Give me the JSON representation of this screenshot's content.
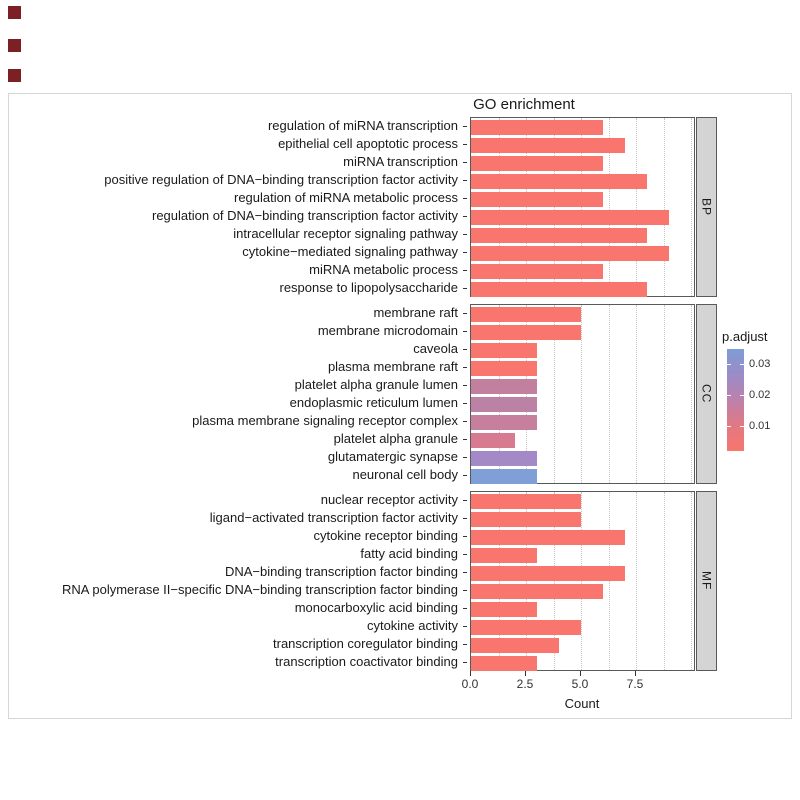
{
  "decorations": {
    "square_color": "#7b2025",
    "square_count": 3
  },
  "chart_data": {
    "type": "bar",
    "orientation": "horizontal",
    "title": "GO enrichment",
    "xlabel": "Count",
    "x_ticks": [
      0.0,
      2.5,
      5.0,
      7.5
    ],
    "x_tick_labels": [
      "0.0",
      "2.5",
      "5.0",
      "7.5"
    ],
    "xlim": [
      0,
      10.2
    ],
    "grid": "dotted-vertical",
    "bar_color_default": "#f8766d",
    "legend": {
      "title": "p.adjust",
      "position": "right",
      "tick_labels": [
        "0.03",
        "0.02",
        "0.01"
      ],
      "gradient": [
        "#7e9cd4",
        "#9a8cc8",
        "#bc81ab",
        "#e1798383",
        "#f8766d"
      ],
      "gradient_css": [
        "#7e9cd4",
        "#9a8cc8",
        "#bc81ab",
        "#e17983",
        "#f8766d"
      ]
    },
    "facets": [
      {
        "label": "BP",
        "items": [
          {
            "name": "regulation of miRNA transcription",
            "count": 6,
            "color": "#f8766d"
          },
          {
            "name": "epithelial cell apoptotic process",
            "count": 7,
            "color": "#f8766d"
          },
          {
            "name": "miRNA transcription",
            "count": 6,
            "color": "#f8766d"
          },
          {
            "name": "positive regulation of DNA−binding transcription factor activity",
            "count": 8,
            "color": "#f8766d"
          },
          {
            "name": "regulation of miRNA metabolic process",
            "count": 6,
            "color": "#f8766d"
          },
          {
            "name": "regulation of DNA−binding transcription factor activity",
            "count": 9,
            "color": "#f8766d"
          },
          {
            "name": "intracellular receptor signaling pathway",
            "count": 8,
            "color": "#f8766d"
          },
          {
            "name": "cytokine−mediated signaling pathway",
            "count": 9,
            "color": "#f8766d"
          },
          {
            "name": "miRNA metabolic process",
            "count": 6,
            "color": "#f8766d"
          },
          {
            "name": "response to lipopolysaccharide",
            "count": 8,
            "color": "#f8766d"
          }
        ]
      },
      {
        "label": "CC",
        "items": [
          {
            "name": "membrane raft",
            "count": 5,
            "color": "#f8766d"
          },
          {
            "name": "membrane microdomain",
            "count": 5,
            "color": "#f8766d"
          },
          {
            "name": "caveola",
            "count": 3,
            "color": "#f8766d"
          },
          {
            "name": "plasma membrane raft",
            "count": 3,
            "color": "#f8766d"
          },
          {
            "name": "platelet alpha granule lumen",
            "count": 3,
            "color": "#c2809f"
          },
          {
            "name": "endoplasmic reticulum lumen",
            "count": 3,
            "color": "#bc82a6"
          },
          {
            "name": "plasma membrane signaling receptor complex",
            "count": 3,
            "color": "#c77f9e"
          },
          {
            "name": "platelet alpha granule",
            "count": 2,
            "color": "#d87b90"
          },
          {
            "name": "glutamatergic synapse",
            "count": 3,
            "color": "#a389c5"
          },
          {
            "name": "neuronal cell body",
            "count": 3,
            "color": "#7f9fd6"
          }
        ]
      },
      {
        "label": "MF",
        "items": [
          {
            "name": "nuclear receptor activity",
            "count": 5,
            "color": "#f8766d"
          },
          {
            "name": "ligand−activated transcription factor activity",
            "count": 5,
            "color": "#f8766d"
          },
          {
            "name": "cytokine receptor binding",
            "count": 7,
            "color": "#f8766d"
          },
          {
            "name": "fatty acid binding",
            "count": 3,
            "color": "#f8766d"
          },
          {
            "name": "DNA−binding transcription factor binding",
            "count": 7,
            "color": "#f8766d"
          },
          {
            "name": "RNA polymerase II−specific DNA−binding transcription factor binding",
            "count": 6,
            "color": "#f8766d"
          },
          {
            "name": "monocarboxylic acid binding",
            "count": 3,
            "color": "#f8766d"
          },
          {
            "name": "cytokine activity",
            "count": 5,
            "color": "#f8766d"
          },
          {
            "name": "transcription coregulator binding",
            "count": 4,
            "color": "#f8766d"
          },
          {
            "name": "transcription coactivator binding",
            "count": 3,
            "color": "#f8766d"
          }
        ]
      }
    ]
  }
}
